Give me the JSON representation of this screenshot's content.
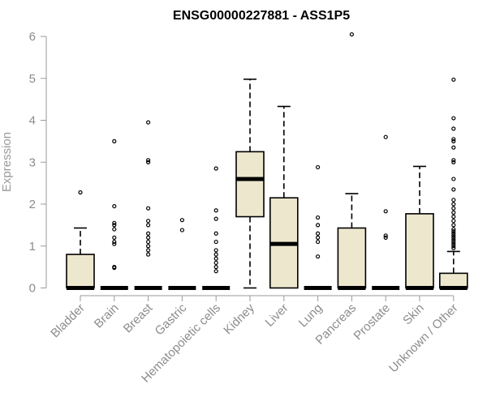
{
  "chart_data": {
    "type": "boxplot",
    "title": "ENSG00000227881 - ASS1P5",
    "ylabel": "Expression",
    "xlabel": "",
    "ylim": [
      0,
      6
    ],
    "yticks": [
      "0",
      "1",
      "2",
      "3",
      "4",
      "5",
      "6"
    ],
    "grid": false,
    "legend": "none",
    "colors": {
      "box_fill": "#ede7ce",
      "box_stroke": "#000000",
      "axis": "#9a9a9a",
      "tick_text": "#8c8c8c"
    },
    "categories": [
      "Bladder",
      "Brain",
      "Breast",
      "Gastric",
      "Hematopoietic cells",
      "Kidney",
      "Liver",
      "Lung",
      "Pancreas",
      "Prostate",
      "Skin",
      "Unknown / Other"
    ],
    "boxes": [
      {
        "q1": 0,
        "median": 0,
        "q3": 0.8,
        "whisker_low": 0,
        "whisker_high": 1.43,
        "outliers": [
          2.28
        ]
      },
      {
        "q1": 0,
        "median": 0,
        "q3": 0,
        "whisker_low": 0,
        "whisker_high": 0,
        "outliers": [
          0.48,
          0.5,
          1.05,
          1.1,
          1.2,
          1.4,
          1.5,
          1.55,
          1.95,
          3.5
        ]
      },
      {
        "q1": 0,
        "median": 0,
        "q3": 0,
        "whisker_low": 0,
        "whisker_high": 0,
        "outliers": [
          0.8,
          0.9,
          1.0,
          1.1,
          1.2,
          1.3,
          1.5,
          1.6,
          1.9,
          3.0,
          3.05,
          3.95
        ]
      },
      {
        "q1": 0,
        "median": 0,
        "q3": 0,
        "whisker_low": 0,
        "whisker_high": 0,
        "outliers": [
          1.38,
          1.62
        ]
      },
      {
        "q1": 0,
        "median": 0,
        "q3": 0,
        "whisker_low": 0,
        "whisker_high": 0,
        "outliers": [
          0.4,
          0.5,
          0.6,
          0.7,
          0.8,
          0.9,
          1.1,
          1.3,
          1.65,
          1.85,
          2.85
        ]
      },
      {
        "q1": 1.7,
        "median": 2.6,
        "q3": 3.25,
        "whisker_low": 0,
        "whisker_high": 4.98,
        "outliers": []
      },
      {
        "q1": 0,
        "median": 1.05,
        "q3": 2.15,
        "whisker_low": 0,
        "whisker_high": 4.33,
        "outliers": []
      },
      {
        "q1": 0,
        "median": 0,
        "q3": 0,
        "whisker_low": 0,
        "whisker_high": 0,
        "outliers": [
          0.75,
          1.1,
          1.2,
          1.3,
          1.5,
          1.68,
          2.88
        ]
      },
      {
        "q1": 0,
        "median": 0,
        "q3": 1.43,
        "whisker_low": 0,
        "whisker_high": 2.25,
        "outliers": [
          6.05
        ]
      },
      {
        "q1": 0,
        "median": 0,
        "q3": 0,
        "whisker_low": 0,
        "whisker_high": 0,
        "outliers": [
          1.2,
          1.25,
          1.83,
          3.6
        ]
      },
      {
        "q1": 0,
        "median": 0,
        "q3": 1.77,
        "whisker_low": 0,
        "whisker_high": 2.9,
        "outliers": []
      },
      {
        "q1": 0,
        "median": 0,
        "q3": 0.35,
        "whisker_low": 0,
        "whisker_high": 0.87,
        "outliers": [
          0.95,
          1.0,
          1.05,
          1.1,
          1.15,
          1.2,
          1.25,
          1.3,
          1.35,
          1.4,
          1.5,
          1.6,
          1.7,
          1.8,
          1.9,
          2.0,
          2.1,
          2.35,
          2.6,
          3.0,
          3.05,
          3.35,
          3.5,
          3.55,
          3.8,
          4.05,
          4.97
        ]
      }
    ]
  }
}
